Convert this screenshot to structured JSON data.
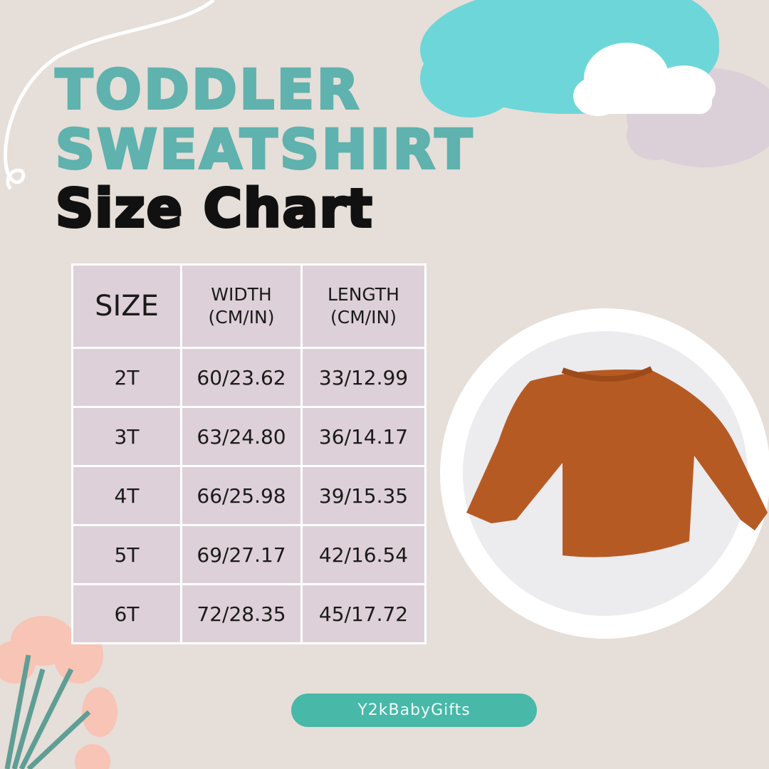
{
  "title": {
    "line1": "TODDLER",
    "line2": "SWEATSHIRT",
    "line3": "Size Chart"
  },
  "table": {
    "headers": [
      "SIZE",
      "WIDTH\n(CM/IN)",
      "LENGTH\n(CM/IN)"
    ],
    "header_width": {
      "l1": "WIDTH",
      "l2": "(CM/IN)"
    },
    "header_length": {
      "l1": "LENGTH",
      "l2": "(CM/IN)"
    },
    "rows": [
      [
        "2T",
        "60/23.62",
        "33/12.99"
      ],
      [
        "3T",
        "63/24.80",
        "36/14.17"
      ],
      [
        "4T",
        "66/25.98",
        "39/15.35"
      ],
      [
        "5T",
        "69/27.17",
        "42/16.54"
      ],
      [
        "6T",
        "72/28.35",
        "45/17.72"
      ]
    ]
  },
  "brand": "Y2kBabyGifts",
  "colors": {
    "teal_title": "#5fb2ae",
    "cell_bg": "#ddd0d8",
    "brand_pill": "#48b8a8",
    "background": "#e6ded8",
    "sweatshirt": "#b65a24"
  }
}
